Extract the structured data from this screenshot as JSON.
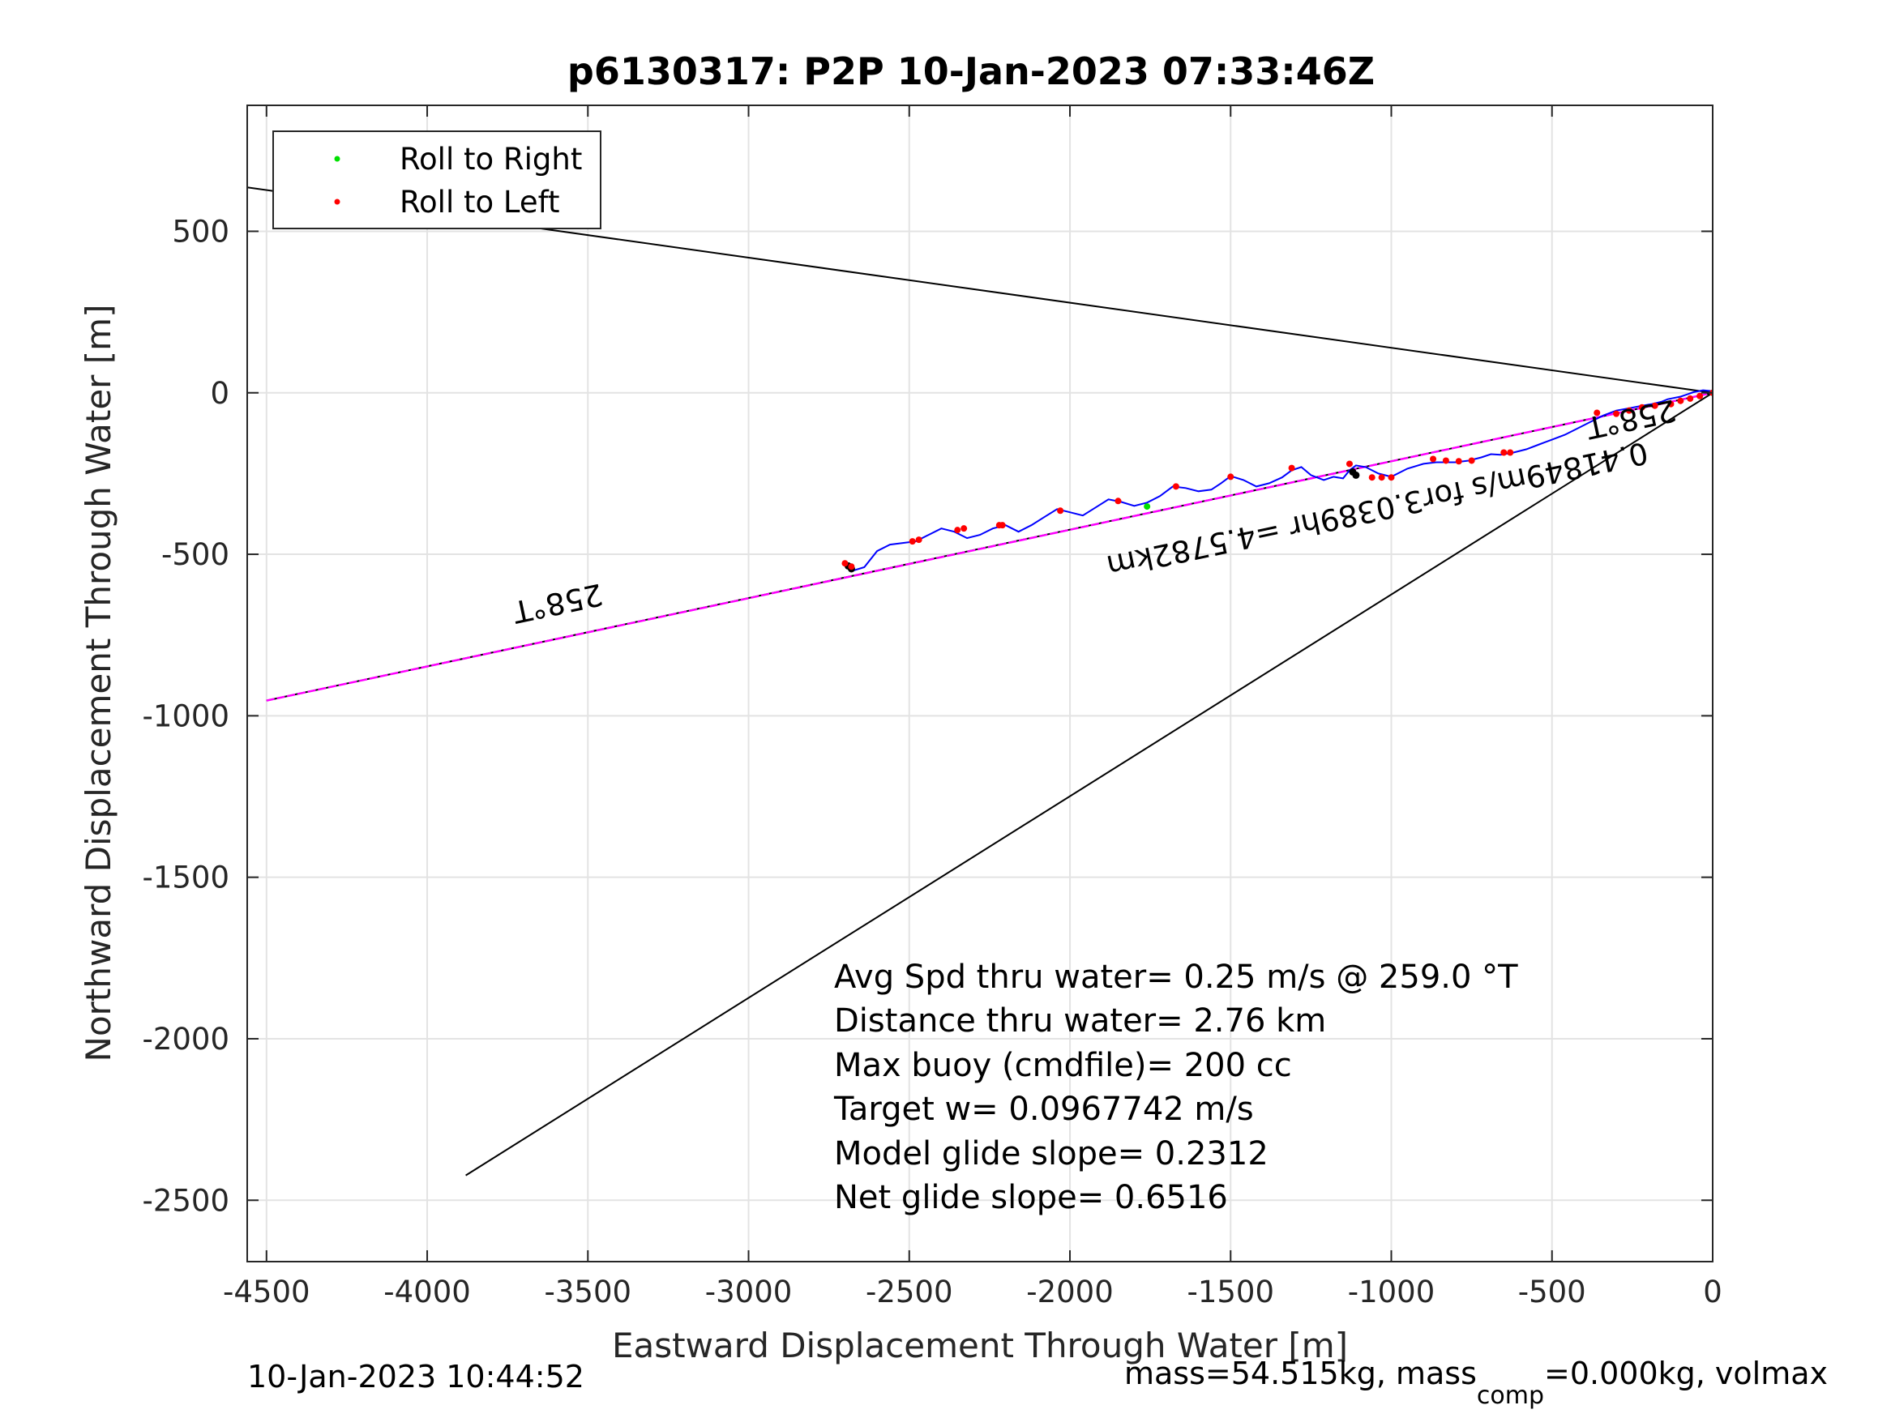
{
  "chart_data": {
    "type": "scatter",
    "title": "p6130317: P2P 10-Jan-2023 07:33:46Z",
    "xlabel": "Eastward Displacement Through Water [m]",
    "ylabel": "Northward Displacement Through Water [m]",
    "xlim": [
      -4560,
      0
    ],
    "ylim": [
      -2690,
      890
    ],
    "xticks": [
      -4500,
      -4000,
      -3500,
      -3000,
      -2500,
      -2000,
      -1500,
      -1000,
      -500,
      0
    ],
    "xtick_labels": [
      "-4500",
      "-4000",
      "-3500",
      "-3000",
      "-2500",
      "-2000",
      "-1500",
      "-1000",
      "-500",
      "0"
    ],
    "yticks": [
      500,
      0,
      -500,
      -1000,
      -1500,
      -2000,
      -2500
    ],
    "ytick_labels": [
      "500",
      "0",
      "-500",
      "-1000",
      "-1500",
      "-2000",
      "-2500"
    ],
    "grid": true,
    "legend_position": "top-left",
    "legend": [
      {
        "name": "Roll to Right",
        "color": "#00e000"
      },
      {
        "name": "Roll to Left",
        "color": "#ff0000"
      }
    ],
    "lines": [
      {
        "kind": "cone-upper",
        "color": "#000000",
        "x": [
          -4560,
          0
        ],
        "y": [
          636,
          0
        ]
      },
      {
        "kind": "cone-lower",
        "color": "#000000",
        "x": [
          -3880,
          0
        ],
        "y": [
          -2423,
          0
        ]
      },
      {
        "kind": "bearing",
        "color": "#000000",
        "x": [
          -4500,
          0
        ],
        "y": [
          -953,
          0
        ]
      },
      {
        "kind": "magenta-track",
        "color": "#ff00ff",
        "x": [
          -4500,
          -3000,
          -2000,
          -1000,
          0
        ],
        "y": [
          -953,
          -636,
          -424,
          -212,
          0
        ]
      }
    ],
    "track": {
      "color": "#0000ff",
      "x": [
        0,
        -30,
        -60,
        -80,
        -100,
        -140,
        -160,
        -190,
        -220,
        -260,
        -300,
        -340,
        -380,
        -420,
        -460,
        -500,
        -540,
        -580,
        -620,
        -660,
        -690,
        -720,
        -760,
        -800,
        -860,
        -900,
        -950,
        -1000,
        -1040,
        -1080,
        -1110,
        -1130,
        -1150,
        -1180,
        -1210,
        -1250,
        -1280,
        -1310,
        -1340,
        -1380,
        -1420,
        -1460,
        -1500,
        -1530,
        -1560,
        -1600,
        -1640,
        -1680,
        -1720,
        -1760,
        -1800,
        -1840,
        -1880,
        -1920,
        -1960,
        -2000,
        -2040,
        -2080,
        -2120,
        -2160,
        -2200,
        -2240,
        -2280,
        -2320,
        -2360,
        -2400,
        -2440,
        -2480,
        -2520,
        -2560,
        -2600,
        -2640,
        -2680,
        -2700
      ],
      "y": [
        5,
        8,
        2,
        -5,
        -12,
        -20,
        -28,
        -35,
        -40,
        -48,
        -55,
        -70,
        -90,
        -110,
        -130,
        -145,
        -160,
        -175,
        -185,
        -192,
        -190,
        -200,
        -210,
        -215,
        -215,
        -220,
        -235,
        -260,
        -250,
        -230,
        -225,
        -240,
        -265,
        -260,
        -270,
        -255,
        -230,
        -240,
        -262,
        -280,
        -290,
        -270,
        -258,
        -280,
        -300,
        -305,
        -295,
        -290,
        -320,
        -340,
        -350,
        -338,
        -330,
        -355,
        -380,
        -370,
        -360,
        -385,
        -410,
        -430,
        -410,
        -420,
        -440,
        -450,
        -430,
        -420,
        -440,
        -460,
        -465,
        -470,
        -490,
        -540,
        -552,
        -530
      ]
    },
    "left_roll_points": {
      "color": "#ff0000",
      "x": [
        0,
        -40,
        -70,
        -100,
        -130,
        -180,
        -220,
        -260,
        -300,
        -360,
        -630,
        -650,
        -750,
        -790,
        -830,
        -870,
        -1000,
        -1030,
        -1060,
        -1130,
        -1310,
        -1500,
        -1670,
        -1850,
        -2030,
        -2210,
        -2220,
        -2330,
        -2350,
        -2470,
        -2490,
        -2700,
        -2680
      ],
      "y": [
        0,
        -10,
        -18,
        -25,
        -35,
        -40,
        -45,
        -55,
        -65,
        -62,
        -185,
        -185,
        -210,
        -212,
        -210,
        -205,
        -262,
        -262,
        -262,
        -220,
        -233,
        -260,
        -290,
        -335,
        -365,
        -410,
        -410,
        -420,
        -425,
        -455,
        -460,
        -528,
        -538
      ]
    },
    "right_roll_points": {
      "color": "#00e000",
      "x": [
        -1760
      ],
      "y": [
        -352
      ]
    },
    "overlay_marks": {
      "color": "#000000",
      "x": [
        -1120,
        -1110,
        -2690,
        -2680
      ],
      "y": [
        -245,
        -255,
        -536,
        -545
      ]
    },
    "rotated_labels": [
      {
        "text": "258°T",
        "x": -3600,
        "y": -620,
        "angle": 168
      },
      {
        "text": "258°T",
        "x": -260,
        "y": -50,
        "angle": 168
      },
      {
        "text": "0.41849m/s for3.0389hr =4.5782km",
        "x": -1050,
        "y": -330,
        "angle": 168
      }
    ],
    "annotations": [
      "Avg Spd thru water=  0.25 m/s @ 259.0 °T",
      "Distance thru water=  2.76 km",
      "Max buoy (cmdfile)= 200 cc",
      "Target w= 0.0967742 m/s",
      "Model glide slope= 0.2312",
      "Net glide slope= 0.6516"
    ],
    "footer_left": "10-Jan-2023 10:44:52",
    "footer_right_parts": [
      "mass=54.515kg, mass",
      "comp",
      "=0.000kg, volmax"
    ]
  }
}
